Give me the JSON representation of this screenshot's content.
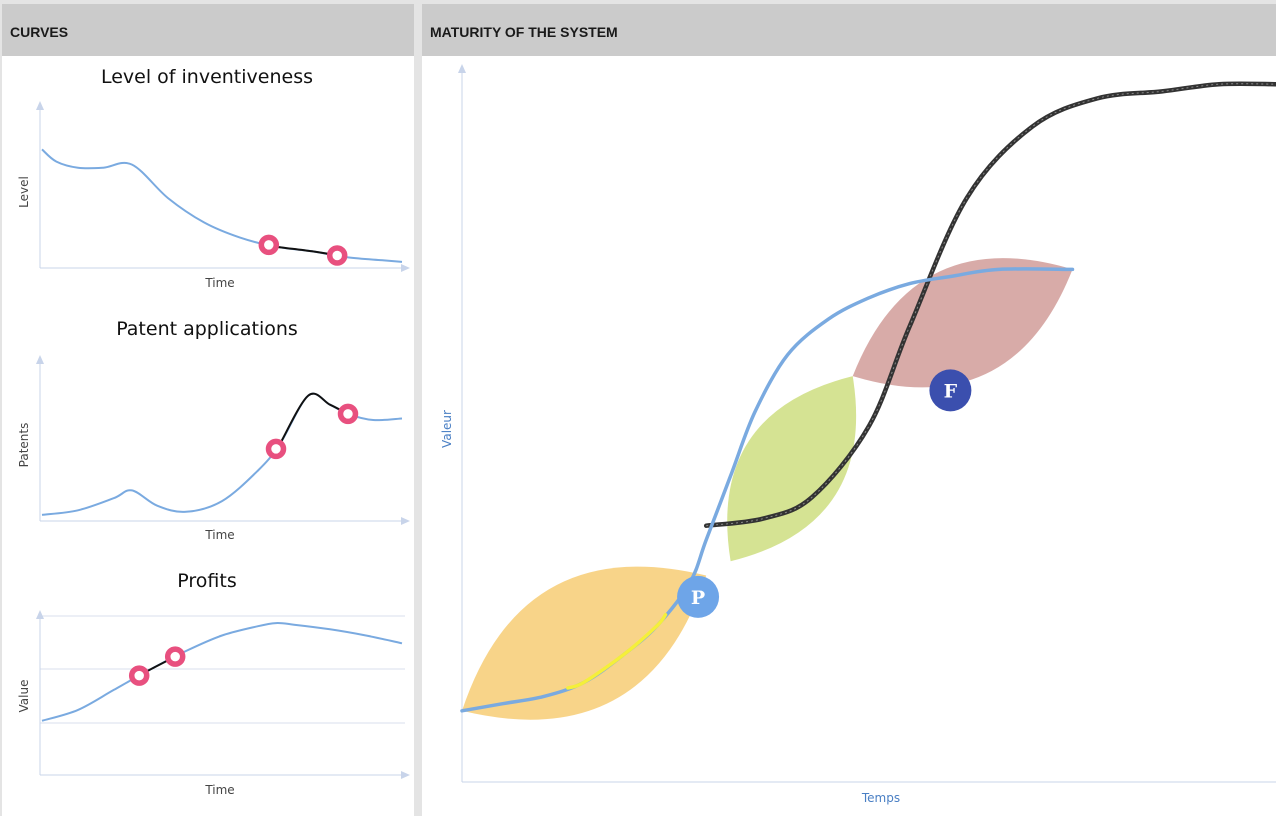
{
  "left_panel": {
    "title": "CURVES"
  },
  "right_panel": {
    "title": "MATURITY OF THE SYSTEM"
  },
  "chart_data": [
    {
      "type": "line",
      "title": "Level of inventiveness",
      "xlabel": "Time",
      "ylabel": "Level",
      "grid": false,
      "series_color": "#7aaae0",
      "highlight_color": "#111111",
      "marker_color": "#e8507f",
      "x": [
        0,
        0.04,
        0.1,
        0.17,
        0.25,
        0.35,
        0.45,
        0.55,
        0.65,
        0.75,
        0.85,
        0.95,
        1.0
      ],
      "values": [
        0.78,
        0.7,
        0.66,
        0.66,
        0.68,
        0.46,
        0.3,
        0.2,
        0.14,
        0.11,
        0.07,
        0.05,
        0.04
      ],
      "highlight_range": [
        0.63,
        0.82
      ],
      "markers": [
        0.63,
        0.82
      ]
    },
    {
      "type": "line",
      "title": "Patent applications",
      "xlabel": "Time",
      "ylabel": "Patents",
      "grid": false,
      "series_color": "#7aaae0",
      "highlight_color": "#111111",
      "marker_color": "#e8507f",
      "x": [
        0,
        0.1,
        0.2,
        0.25,
        0.32,
        0.4,
        0.5,
        0.6,
        0.66,
        0.74,
        0.8,
        0.85,
        0.92,
        1.0
      ],
      "values": [
        0.04,
        0.07,
        0.15,
        0.2,
        0.1,
        0.06,
        0.13,
        0.33,
        0.5,
        0.82,
        0.76,
        0.7,
        0.66,
        0.67
      ],
      "highlight_range": [
        0.65,
        0.85
      ],
      "markers": [
        0.65,
        0.85
      ]
    },
    {
      "type": "line",
      "title": "Profits",
      "xlabel": "Time",
      "ylabel": "Value",
      "grid": true,
      "series_color": "#7aaae0",
      "highlight_color": "#111111",
      "marker_color": "#e8507f",
      "x": [
        0,
        0.1,
        0.2,
        0.3,
        0.4,
        0.5,
        0.6,
        0.65,
        0.7,
        0.8,
        0.9,
        1.0
      ],
      "values": [
        0.35,
        0.42,
        0.55,
        0.68,
        0.8,
        0.9,
        0.96,
        0.98,
        0.97,
        0.94,
        0.9,
        0.85
      ],
      "highlight_range": [
        0.27,
        0.37
      ],
      "markers": [
        0.27,
        0.37
      ]
    },
    {
      "type": "line",
      "title": "",
      "xlabel": "Temps",
      "ylabel": "Valeur",
      "grid": false,
      "series": [
        {
          "color": "#7aaae0",
          "x": [
            0,
            0.05,
            0.1,
            0.15,
            0.2,
            0.24,
            0.28,
            0.3,
            0.33,
            0.36,
            0.4,
            0.45,
            0.5,
            0.55,
            0.6,
            0.66,
            0.75
          ],
          "values": [
            0.1,
            0.11,
            0.12,
            0.14,
            0.18,
            0.22,
            0.28,
            0.34,
            0.43,
            0.52,
            0.6,
            0.65,
            0.68,
            0.7,
            0.71,
            0.72,
            0.72
          ],
          "highlight_range": [
            0.13,
            0.25
          ],
          "highlight_color": "#f5ef3a"
        },
        {
          "color": "#333333",
          "x": [
            0.3,
            0.37,
            0.43,
            0.5,
            0.55,
            0.62,
            0.7,
            0.78,
            0.86,
            0.93,
            1.0
          ],
          "values": [
            0.36,
            0.37,
            0.4,
            0.5,
            0.64,
            0.82,
            0.92,
            0.96,
            0.97,
            0.98,
            0.98
          ]
        }
      ],
      "bands": [
        {
          "color": "#f5c45c",
          "x_range": [
            0,
            0.3
          ],
          "center_y": [
            0.1,
            0.29
          ]
        },
        {
          "color": "#c5d86a",
          "x_range": [
            0.33,
            0.48
          ],
          "center_y": [
            0.31,
            0.57
          ]
        },
        {
          "color": "#c98b87",
          "x_range": [
            0.48,
            0.75
          ],
          "center_y": [
            0.57,
            0.72
          ]
        }
      ],
      "milestones": [
        {
          "label": "P",
          "x": 0.29,
          "y": 0.26,
          "color": "#6ea5e8"
        },
        {
          "label": "F",
          "x": 0.6,
          "y": 0.55,
          "color": "#3b4fae"
        }
      ]
    }
  ]
}
